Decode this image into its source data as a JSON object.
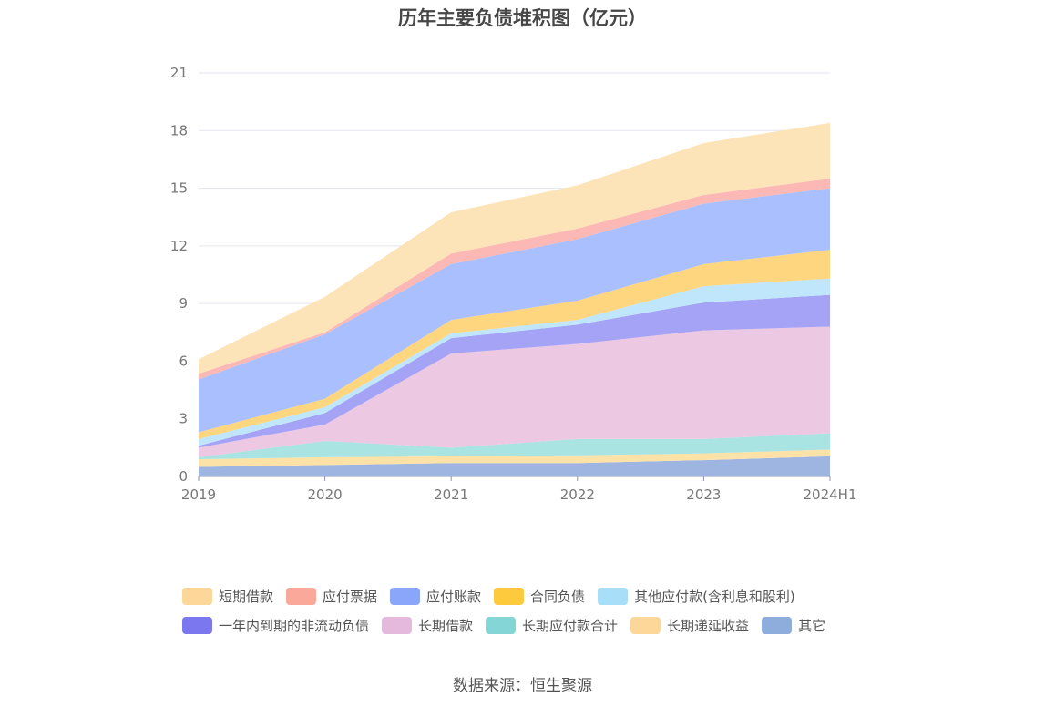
{
  "chart_data": {
    "type": "area",
    "stacked": true,
    "title": "历年主要负债堆积图（亿元）",
    "categories": [
      "2019",
      "2020",
      "2021",
      "2022",
      "2023",
      "2024H1"
    ],
    "ylim": [
      0,
      21
    ],
    "yticks": [
      0,
      3,
      6,
      9,
      12,
      15,
      18,
      21
    ],
    "grid": true,
    "legend_position": "bottom",
    "series": [
      {
        "name": "其它",
        "color": "#9db5e0",
        "values": [
          0.5,
          0.6,
          0.7,
          0.7,
          0.85,
          1.05
        ]
      },
      {
        "name": "长期递延收益",
        "color": "#fde2a8",
        "values": [
          0.4,
          0.4,
          0.35,
          0.4,
          0.35,
          0.35
        ]
      },
      {
        "name": "长期应付款合计",
        "color": "#a9e3e2",
        "values": [
          0.1,
          0.85,
          0.45,
          0.85,
          0.75,
          0.85
        ]
      },
      {
        "name": "长期借款",
        "color": "#ecc8e2",
        "values": [
          0.5,
          0.85,
          4.9,
          4.95,
          5.65,
          5.55
        ]
      },
      {
        "name": "一年内到期的非流动负债",
        "color": "#a5a3f5",
        "values": [
          0.1,
          0.6,
          0.8,
          1.0,
          1.45,
          1.65
        ]
      },
      {
        "name": "其他应付款(含利息和股利)",
        "color": "#bfe6fb",
        "values": [
          0.35,
          0.3,
          0.25,
          0.25,
          0.85,
          0.85
        ]
      },
      {
        "name": "合同负债",
        "color": "#ffd680",
        "values": [
          0.35,
          0.45,
          0.7,
          1.0,
          1.15,
          1.5
        ]
      },
      {
        "name": "应付账款",
        "color": "#aabffe",
        "values": [
          2.75,
          3.35,
          2.9,
          3.2,
          3.15,
          3.2
        ]
      },
      {
        "name": "应付票据",
        "color": "#fcb8b4",
        "values": [
          0.3,
          0.1,
          0.55,
          0.55,
          0.45,
          0.5
        ]
      },
      {
        "name": "短期借款",
        "color": "#fde4b8",
        "values": [
          0.75,
          1.85,
          2.15,
          2.25,
          2.7,
          2.9
        ]
      }
    ]
  },
  "legend": [
    [
      {
        "label": "短期借款",
        "color": "#fdd699"
      },
      {
        "label": "应付票据",
        "color": "#f9a89a"
      },
      {
        "label": "应付账款",
        "color": "#8aa6fb"
      },
      {
        "label": "合同负债",
        "color": "#fdc93d"
      },
      {
        "label": "其他应付款(含利息和股利)",
        "color": "#a9def8"
      }
    ],
    [
      {
        "label": "一年内到期的非流动负债",
        "color": "#7b78ef"
      },
      {
        "label": "长期借款",
        "color": "#e5b9dc"
      },
      {
        "label": "长期应付款合计",
        "color": "#83d6d5"
      },
      {
        "label": "长期递延收益",
        "color": "#fdd699"
      },
      {
        "label": "其它",
        "color": "#8eacdc"
      }
    ]
  ],
  "source": "数据来源：恒生聚源"
}
